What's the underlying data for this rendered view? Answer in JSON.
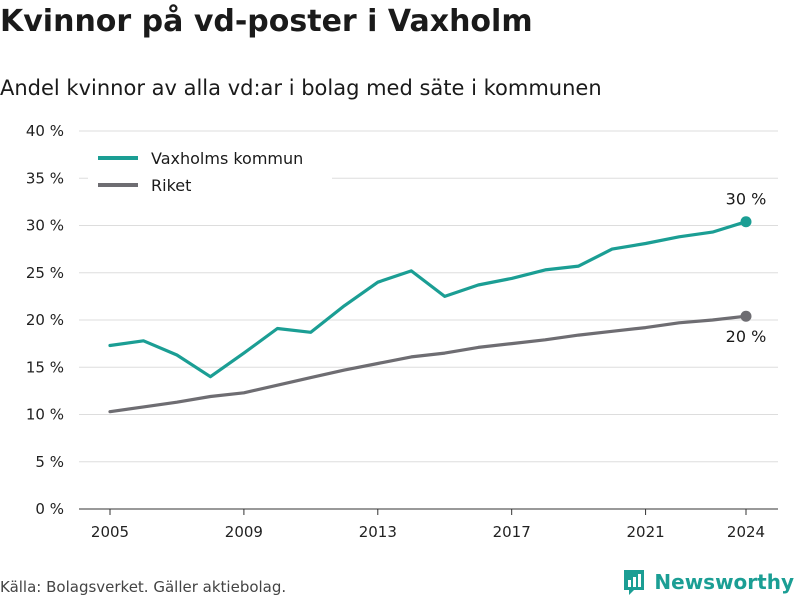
{
  "page": {
    "title": "Kvinnor på vd-poster i Vaxholm",
    "subtitle": "Andel kvinnor av alla vd:ar i bolag med säte i kommunen",
    "source": "Källa: Bolagsverket. Gäller aktiebolag.",
    "brand": "Newsworthy",
    "brand_icon": "newsworthy-logo-icon"
  },
  "colors": {
    "vaxholm": "#1b9e94",
    "riket": "#6e6d72",
    "grid": "#dddddd",
    "axis": "#333333",
    "brand": "#1b9e94"
  },
  "chart_data": {
    "type": "line",
    "title": "Kvinnor på vd-poster i Vaxholm",
    "subtitle": "Andel kvinnor av alla vd:ar i bolag med säte i kommunen",
    "xlabel": "",
    "ylabel": "",
    "ylim": [
      0,
      40
    ],
    "xlim": [
      2005,
      2024
    ],
    "yticks": [
      0,
      5,
      10,
      15,
      20,
      25,
      30,
      35,
      40
    ],
    "ytick_labels": [
      "0 %",
      "5 %",
      "10 %",
      "15 %",
      "20 %",
      "25 %",
      "30 %",
      "35 %",
      "40 %"
    ],
    "xticks": [
      2005,
      2009,
      2013,
      2017,
      2021,
      2024
    ],
    "xtick_labels": [
      "2005",
      "2009",
      "2013",
      "2017",
      "2021",
      "2024"
    ],
    "grid": true,
    "legend_position": "top-left",
    "x": [
      2005,
      2006,
      2007,
      2008,
      2009,
      2010,
      2011,
      2012,
      2013,
      2014,
      2015,
      2016,
      2017,
      2018,
      2019,
      2020,
      2021,
      2022,
      2023,
      2024
    ],
    "series": [
      {
        "name": "Vaxholms kommun",
        "color": "#1b9e94",
        "values": [
          17.3,
          17.8,
          16.3,
          14.0,
          16.5,
          19.1,
          18.7,
          21.5,
          24.0,
          25.2,
          22.5,
          23.7,
          24.4,
          25.3,
          25.7,
          27.5,
          28.1,
          28.8,
          29.3,
          30.4
        ],
        "end_label": "30 %"
      },
      {
        "name": "Riket",
        "color": "#6e6d72",
        "values": [
          10.3,
          10.8,
          11.3,
          11.9,
          12.3,
          13.1,
          13.9,
          14.7,
          15.4,
          16.1,
          16.5,
          17.1,
          17.5,
          17.9,
          18.4,
          18.8,
          19.2,
          19.7,
          20.0,
          20.4
        ],
        "end_label": "20 %"
      }
    ]
  }
}
